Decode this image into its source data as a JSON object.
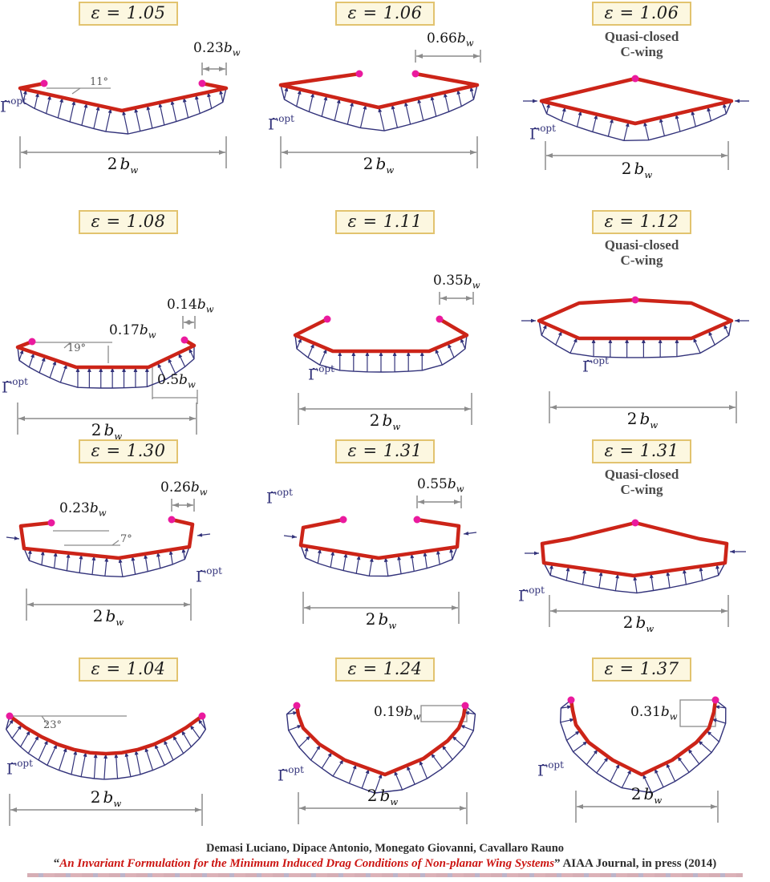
{
  "colors": {
    "wing": "#cc2418",
    "arrows": "#32327a",
    "dot": "#ea1a9e",
    "gray": "#8c8c8c",
    "badge_bg": "#fcf7e0",
    "badge_border": "#e2c36f",
    "cite_red": "#cc1512",
    "cite_dark": "#2e2e2e"
  },
  "gamma_label": {
    "g": "Γ̃",
    "sup": "opt"
  },
  "span_label": {
    "v": "2",
    "b": "b",
    "s": "w"
  },
  "panels": [
    {
      "epsilon": "ε = 1.05",
      "dims": [
        {
          "v": "0.23",
          "b": "b",
          "s": "w"
        }
      ],
      "angles": [
        "11°"
      ]
    },
    {
      "epsilon": "ε = 1.06",
      "dims": [
        {
          "v": "0.66",
          "b": "b",
          "s": "w"
        }
      ]
    },
    {
      "epsilon": "ε = 1.06",
      "subtitle": {
        "line1": "Quasi-closed",
        "line2": "C-wing"
      }
    },
    {
      "epsilon": "ε = 1.08",
      "dims": [
        {
          "v": "0.14",
          "b": "b",
          "s": "w"
        },
        {
          "v": "0.17",
          "b": "b",
          "s": "w"
        },
        {
          "v": "0.5",
          "b": "b",
          "s": "w"
        }
      ],
      "angles": [
        "19°"
      ]
    },
    {
      "epsilon": "ε = 1.11",
      "dims": [
        {
          "v": "0.35",
          "b": "b",
          "s": "w"
        }
      ]
    },
    {
      "epsilon": "ε = 1.12",
      "subtitle": {
        "line1": "Quasi-closed",
        "line2": "C-wing"
      }
    },
    {
      "epsilon": "ε = 1.30",
      "dims": [
        {
          "v": "0.23",
          "b": "b",
          "s": "w"
        },
        {
          "v": "0.26",
          "b": "b",
          "s": "w"
        }
      ],
      "angles": [
        "7°"
      ]
    },
    {
      "epsilon": "ε = 1.31",
      "dims": [
        {
          "v": "0.55",
          "b": "b",
          "s": "w"
        }
      ]
    },
    {
      "epsilon": "ε = 1.31",
      "subtitle": {
        "line1": "Quasi-closed",
        "line2": "C-wing"
      }
    },
    {
      "epsilon": "ε = 1.04",
      "angles": [
        "23°"
      ]
    },
    {
      "epsilon": "ε = 1.24",
      "dims": [
        {
          "v": "0.19",
          "b": "b",
          "s": "w"
        }
      ]
    },
    {
      "epsilon": "ε = 1.37",
      "dims": [
        {
          "v": "0.31",
          "b": "b",
          "s": "w"
        }
      ]
    }
  ],
  "citation": {
    "authors": "Demasi Luciano, Dipace Antonio, Monegato Giovanni, Cavallaro Rauno",
    "quote_open": "“",
    "title": "An Invariant Formulation for the Minimum Induced Drag Conditions of Non-planar Wing Systems",
    "quote_close": "”",
    "suffix": " AIAA Journal, in press (2014)"
  }
}
